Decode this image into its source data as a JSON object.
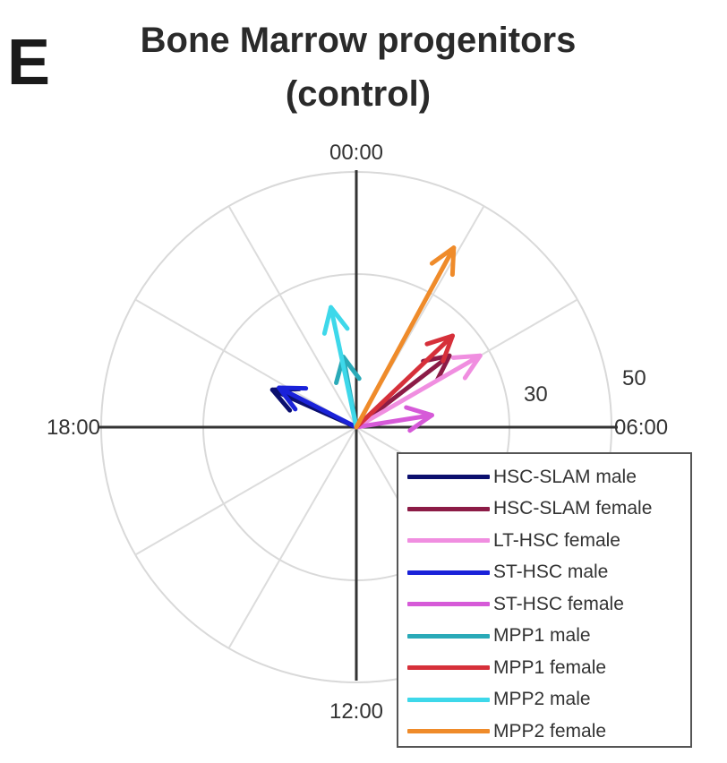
{
  "panel_letter": "E",
  "title_lines": [
    "Bone Marrow progenitors",
    "(control)"
  ],
  "chart_data": {
    "type": "polar-vector",
    "angular_axis": {
      "tick_labels": [
        "00:00",
        "06:00",
        "12:00",
        "18:00"
      ],
      "direction": "clockwise",
      "zero": "top",
      "period_hours": 24,
      "spokes_every_hours": 2
    },
    "radial_axis": {
      "rings": [
        30,
        50
      ],
      "tick_labels": [
        "30",
        "50"
      ],
      "max": 50,
      "grid": true
    },
    "legend_placement": "bottom-right",
    "series": [
      {
        "name": "HSC-SLAM male",
        "color": "#0b0f6e",
        "angle_hours": 19.6,
        "magnitude": 18
      },
      {
        "name": "HSC-SLAM female",
        "color": "#8c1b46",
        "angle_hours": 3.5,
        "magnitude": 23
      },
      {
        "name": "LT-HSC female",
        "color": "#f08ee0",
        "angle_hours": 4.0,
        "magnitude": 28
      },
      {
        "name": "ST-HSC male",
        "color": "#1a22d9",
        "angle_hours": 19.8,
        "magnitude": 17
      },
      {
        "name": "ST-HSC female",
        "color": "#d65ad8",
        "angle_hours": 5.4,
        "magnitude": 15
      },
      {
        "name": "MPP1 male",
        "color": "#2aaab8",
        "angle_hours": 23.3,
        "magnitude": 14
      },
      {
        "name": "MPP1 female",
        "color": "#d6303a",
        "angle_hours": 3.1,
        "magnitude": 26
      },
      {
        "name": "MPP2 male",
        "color": "#3ed8ea",
        "angle_hours": 23.2,
        "magnitude": 24
      },
      {
        "name": "MPP2 female",
        "color": "#ef8b2a",
        "angle_hours": 1.9,
        "magnitude": 40
      }
    ]
  }
}
